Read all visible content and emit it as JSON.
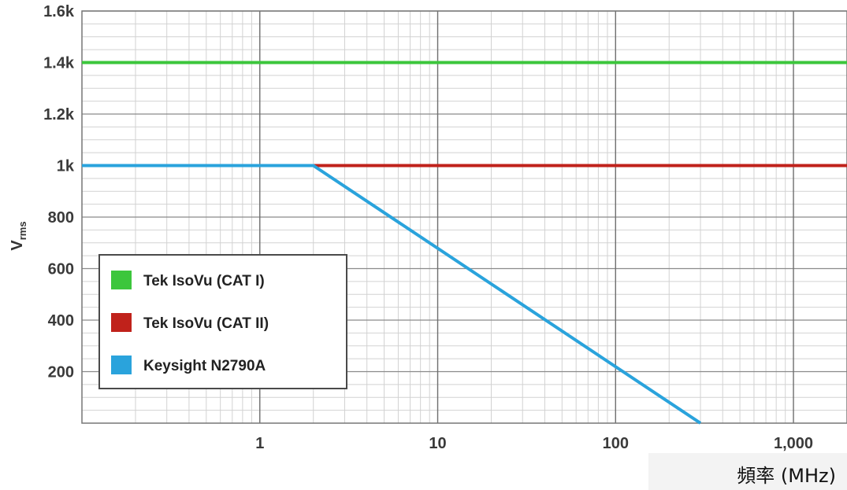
{
  "chart_data": {
    "type": "line",
    "title": "",
    "ylabel": {
      "main": "V",
      "sub": "rms"
    },
    "xlabel": "頻率 (MHz)",
    "x_scale": "log",
    "xlim": [
      0.1,
      2000
    ],
    "ylim": [
      0,
      1600
    ],
    "x_ticks": [
      {
        "value": 1,
        "label": "1"
      },
      {
        "value": 10,
        "label": "10"
      },
      {
        "value": 100,
        "label": "100"
      },
      {
        "value": 1000,
        "label": "1,000"
      }
    ],
    "y_ticks": [
      {
        "value": 200,
        "label": "200"
      },
      {
        "value": 400,
        "label": "400"
      },
      {
        "value": 600,
        "label": "600"
      },
      {
        "value": 800,
        "label": "800"
      },
      {
        "value": 1000,
        "label": "1k"
      },
      {
        "value": 1200,
        "label": "1.2k"
      },
      {
        "value": 1400,
        "label": "1.4k"
      },
      {
        "value": 1600,
        "label": "1.6k"
      }
    ],
    "grid": true,
    "legend": "bottom-left",
    "series": [
      {
        "name": "Tek IsoVu (CAT I)",
        "color": "#3cc63c",
        "x": [
          0.1,
          2000
        ],
        "y": [
          1400,
          1400
        ]
      },
      {
        "name": "Tek IsoVu (CAT II)",
        "color": "#c0221b",
        "x": [
          0.1,
          2000
        ],
        "y": [
          1000,
          1000
        ]
      },
      {
        "name": "Keysight N2790A",
        "color": "#2aa3dc",
        "x": [
          0.1,
          2,
          300
        ],
        "y": [
          1000,
          1000,
          0
        ]
      }
    ]
  }
}
